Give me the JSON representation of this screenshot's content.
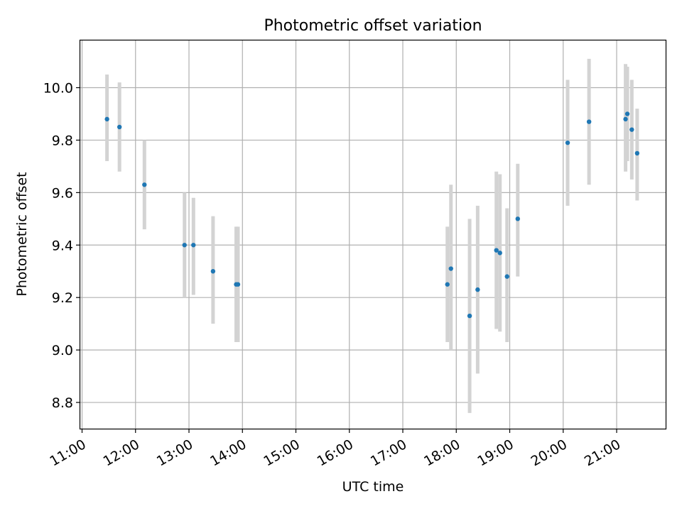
{
  "chart_data": {
    "type": "scatter",
    "title": "Photometric offset variation",
    "xlabel": "UTC time",
    "ylabel": "Photometric offset",
    "x_ticks": [
      "11:00",
      "12:00",
      "13:00",
      "14:00",
      "15:00",
      "16:00",
      "17:00",
      "18:00",
      "19:00",
      "20:00",
      "21:00"
    ],
    "y_ticks": [
      "8.8",
      "9.0",
      "9.2",
      "9.4",
      "9.6",
      "9.8",
      "10.0"
    ],
    "xlim": [
      "10:58",
      "21:55"
    ],
    "ylim": [
      8.7,
      10.18
    ],
    "grid": true,
    "colors": {
      "points": "#1f77b4",
      "error_bars": "#d3d3d3",
      "grid": "#b0b0b0"
    },
    "series": [
      {
        "points": [
          {
            "x": "11:28",
            "y": 9.88,
            "ylow": 9.72,
            "yhigh": 10.05
          },
          {
            "x": "11:42",
            "y": 9.85,
            "ylow": 9.68,
            "yhigh": 10.02
          },
          {
            "x": "12:10",
            "y": 9.63,
            "ylow": 9.46,
            "yhigh": 9.8
          },
          {
            "x": "12:55",
            "y": 9.4,
            "ylow": 9.2,
            "yhigh": 9.6
          },
          {
            "x": "13:05",
            "y": 9.4,
            "ylow": 9.21,
            "yhigh": 9.58
          },
          {
            "x": "13:27",
            "y": 9.3,
            "ylow": 9.1,
            "yhigh": 9.51
          },
          {
            "x": "13:53",
            "y": 9.25,
            "ylow": 9.03,
            "yhigh": 9.47
          },
          {
            "x": "13:55",
            "y": 9.25,
            "ylow": 9.03,
            "yhigh": 9.47
          },
          {
            "x": "17:50",
            "y": 9.25,
            "ylow": 9.03,
            "yhigh": 9.47
          },
          {
            "x": "17:54",
            "y": 9.31,
            "ylow": 9.0,
            "yhigh": 9.63
          },
          {
            "x": "18:15",
            "y": 9.13,
            "ylow": 8.76,
            "yhigh": 9.5
          },
          {
            "x": "18:24",
            "y": 9.23,
            "ylow": 8.91,
            "yhigh": 9.55
          },
          {
            "x": "18:45",
            "y": 9.38,
            "ylow": 9.08,
            "yhigh": 9.68
          },
          {
            "x": "18:49",
            "y": 9.37,
            "ylow": 9.07,
            "yhigh": 9.67
          },
          {
            "x": "18:57",
            "y": 9.28,
            "ylow": 9.03,
            "yhigh": 9.54
          },
          {
            "x": "19:09",
            "y": 9.5,
            "ylow": 9.28,
            "yhigh": 9.71
          },
          {
            "x": "20:05",
            "y": 9.79,
            "ylow": 9.55,
            "yhigh": 10.03
          },
          {
            "x": "20:29",
            "y": 9.87,
            "ylow": 9.63,
            "yhigh": 10.11
          },
          {
            "x": "21:10",
            "y": 9.88,
            "ylow": 9.68,
            "yhigh": 10.09
          },
          {
            "x": "21:12",
            "y": 9.9,
            "ylow": 9.72,
            "yhigh": 10.08
          },
          {
            "x": "21:17",
            "y": 9.84,
            "ylow": 9.65,
            "yhigh": 10.03
          },
          {
            "x": "21:23",
            "y": 9.75,
            "ylow": 9.57,
            "yhigh": 9.92
          }
        ]
      }
    ]
  }
}
